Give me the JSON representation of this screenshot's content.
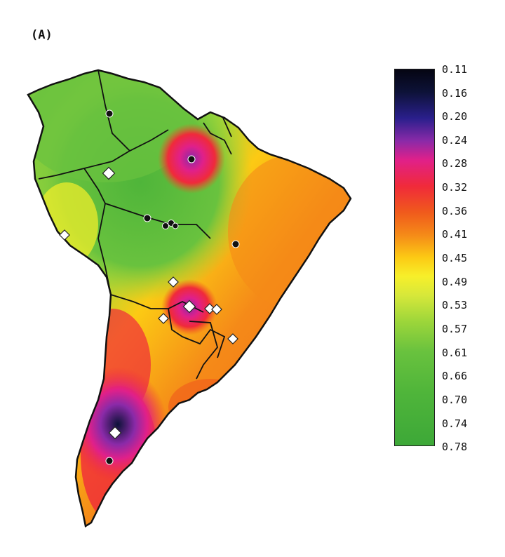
{
  "panel_label": "(A)",
  "colorbar": {
    "ticks": [
      "0.11",
      "0.16",
      "0.20",
      "0.24",
      "0.28",
      "0.32",
      "0.36",
      "0.41",
      "0.45",
      "0.49",
      "0.53",
      "0.57",
      "0.61",
      "0.66",
      "0.70",
      "0.74",
      "0.78"
    ],
    "scale": "dark (low) at top to green (high) at bottom",
    "colors": [
      "#050512",
      "#2a1f8c",
      "#e0208a",
      "#f02a3a",
      "#f58a18",
      "#fcca14",
      "#9dd63a",
      "#3da838"
    ]
  },
  "markers": {
    "black_dot_sites": 8,
    "white_diamond_sites": 12
  }
}
